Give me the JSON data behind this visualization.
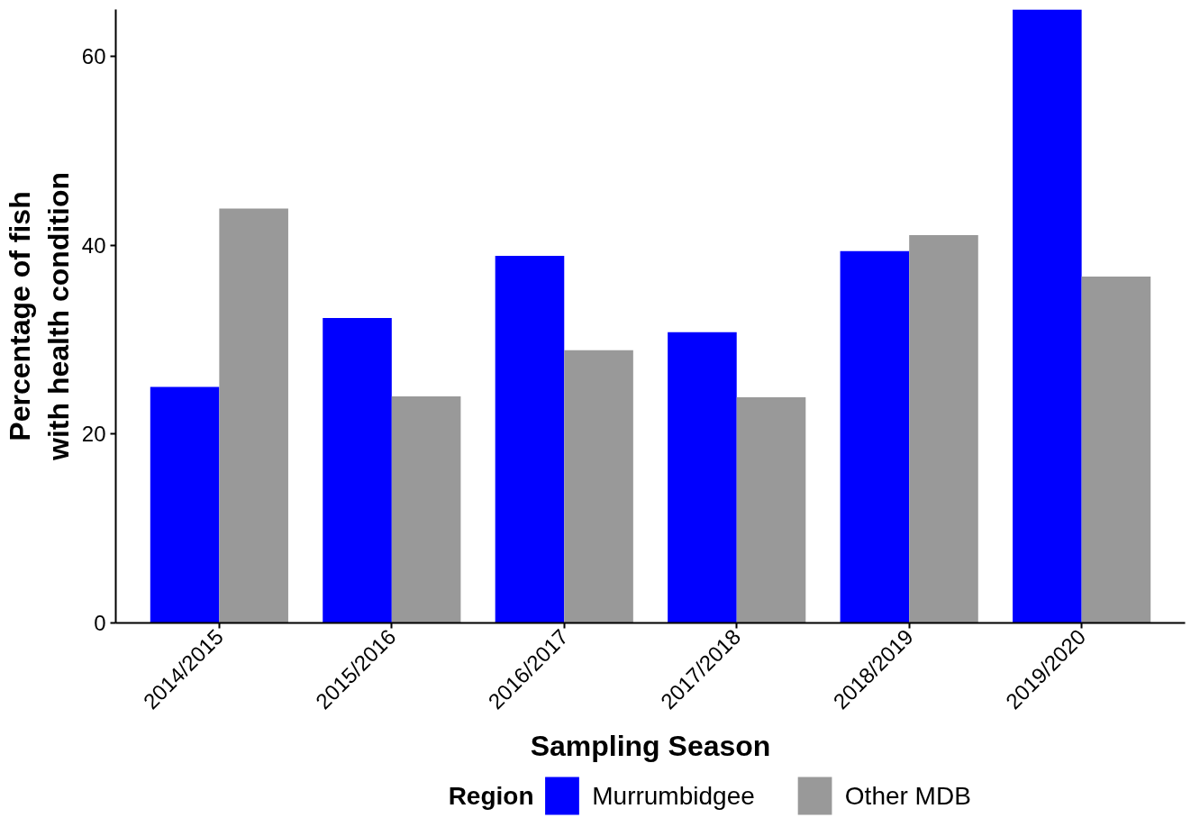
{
  "chart_data": {
    "type": "bar",
    "xlabel": "Sampling Season",
    "ylabel": "Percentage of fish with health condition",
    "legend_title": "Region",
    "categories": [
      "2014/2015",
      "2015/2016",
      "2016/2017",
      "2017/2018",
      "2018/2019",
      "2019/2020"
    ],
    "series": [
      {
        "name": "Murrumbidgee",
        "color": "#0000ff",
        "values": [
          25.0,
          32.3,
          38.9,
          30.8,
          39.4,
          65.0
        ]
      },
      {
        "name": "Other MDB",
        "color": "#999999",
        "values": [
          43.9,
          24.0,
          28.9,
          23.9,
          41.1,
          36.7
        ]
      }
    ],
    "ylim": [
      0,
      65
    ],
    "yticks": [
      0,
      20,
      40,
      60
    ],
    "grid": false,
    "legend": "bottom"
  }
}
